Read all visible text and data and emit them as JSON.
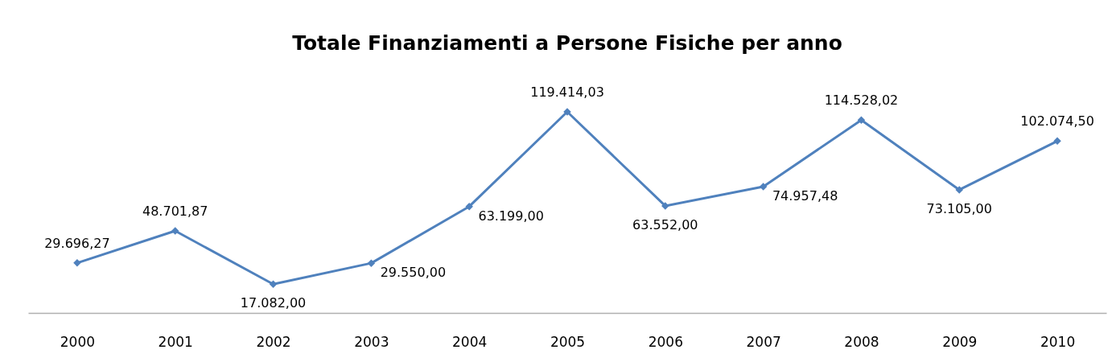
{
  "chart_data": {
    "type": "line",
    "title": "Totale Finanziamenti a Persone Fisiche per anno",
    "categories": [
      "2000",
      "2001",
      "2002",
      "2003",
      "2004",
      "2005",
      "2006",
      "2007",
      "2008",
      "2009",
      "2010"
    ],
    "series": [
      {
        "color": "#4f81bd",
        "values": [
          29696.27,
          48701.87,
          17082.0,
          29550.0,
          63199.0,
          119414.03,
          63552.0,
          74957.48,
          114528.02,
          73105.0,
          102074.5
        ],
        "value_labels": [
          "29.696,27",
          "48.701,87",
          "17.082,00",
          "29.550,00",
          "63.199,00",
          "119.414,03",
          "63.552,00",
          "74.957,48",
          "114.528,02",
          "73.105,00",
          "102.074,50"
        ]
      }
    ],
    "marker": "diamond",
    "line_style": "solid",
    "grid": false,
    "legend": false,
    "tick_labels": "x"
  }
}
